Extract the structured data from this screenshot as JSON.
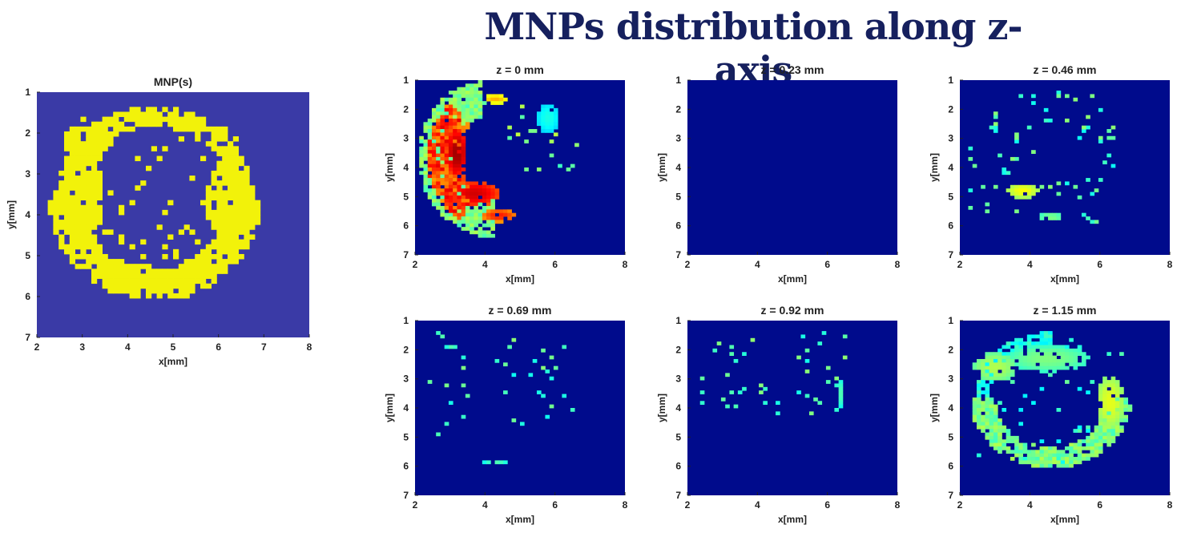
{
  "title": "MNPs distribution along z-axis",
  "colors": {
    "title": "#16205e",
    "background_reference": "#3a3aa6",
    "foreground_reference": "#f2f20a",
    "background_slice": "#000b8c"
  },
  "chart_data": [
    {
      "type": "heatmap",
      "name": "reference",
      "title": "MNP(s)",
      "xlabel": "x[mm]",
      "ylabel": "y[mm]",
      "xlim": [
        2,
        8
      ],
      "ylim": [
        1,
        7
      ],
      "xticks": [
        2,
        3,
        4,
        5,
        6,
        7,
        8
      ],
      "yticks": [
        1,
        2,
        3,
        4,
        5,
        6,
        7
      ],
      "yreversed": true,
      "colormap": "parula-binary",
      "grid": false,
      "cell_size_mm": 0.12,
      "blobs": [
        {
          "type": "arc",
          "cx": 4.6,
          "cy": 3.65,
          "rx": 1.95,
          "ry": 2.05,
          "t0": 180,
          "t1": 360,
          "thick": 0.38,
          "value": 1
        },
        {
          "type": "arc",
          "cx": 4.6,
          "cy": 3.65,
          "rx": 1.95,
          "ry": 2.05,
          "t0": 0,
          "t1": 180,
          "thick": 0.24,
          "value": 1
        },
        {
          "type": "ellipse",
          "cx": 3.0,
          "cy": 3.6,
          "rx": 0.45,
          "ry": 1.3,
          "value": 1
        },
        {
          "type": "ellipse",
          "cx": 6.2,
          "cy": 3.7,
          "rx": 0.45,
          "ry": 1.05,
          "value": 1
        },
        {
          "type": "ellipse",
          "cx": 4.4,
          "cy": 5.6,
          "rx": 0.75,
          "ry": 0.35,
          "value": 1
        },
        {
          "type": "ellipse",
          "cx": 3.1,
          "cy": 2.2,
          "rx": 0.55,
          "ry": 0.4,
          "value": 1
        }
      ],
      "scatter": {
        "count": 70,
        "region": [
          3.0,
          6.5,
          1.6,
          5.6
        ],
        "value": 1
      }
    },
    {
      "type": "heatmap",
      "title": "z = 0 mm",
      "xlabel": "x[mm]",
      "ylabel": "y[mm]",
      "xlim": [
        2,
        8
      ],
      "ylim": [
        1,
        7
      ],
      "xticks": [
        2,
        4,
        6,
        8
      ],
      "yticks": [
        1,
        2,
        3,
        4,
        5,
        6,
        7
      ],
      "yreversed": true,
      "colormap": "jet",
      "grid": false,
      "cell_size_mm": 0.12,
      "blobs": [
        {
          "type": "arc",
          "cx": 4.25,
          "cy": 3.65,
          "rx": 1.65,
          "ry": 2.1,
          "t0": 100,
          "t1": 270,
          "thick": 0.5,
          "value": 0.55
        },
        {
          "type": "arc",
          "cx": 4.25,
          "cy": 3.65,
          "rx": 1.45,
          "ry": 1.9,
          "t0": 130,
          "t1": 240,
          "thick": 0.45,
          "value": 0.9
        },
        {
          "type": "ellipse",
          "cx": 3.7,
          "cy": 4.9,
          "rx": 0.75,
          "ry": 0.45,
          "value": 0.92
        },
        {
          "type": "ellipse",
          "cx": 4.4,
          "cy": 5.65,
          "rx": 0.5,
          "ry": 0.22,
          "value": 0.85
        },
        {
          "type": "ellipse",
          "cx": 4.3,
          "cy": 1.65,
          "rx": 0.35,
          "ry": 0.15,
          "value": 0.7
        },
        {
          "type": "ellipse",
          "cx": 5.8,
          "cy": 2.3,
          "rx": 0.3,
          "ry": 0.5,
          "value": 0.4
        },
        {
          "type": "ellipse",
          "cx": 3.2,
          "cy": 3.5,
          "rx": 0.3,
          "ry": 0.8,
          "value": 0.97
        }
      ],
      "scatter": {
        "count": 20,
        "region": [
          4.5,
          6.8,
          1.8,
          4.2
        ],
        "value": 0.5
      }
    },
    {
      "type": "heatmap",
      "title": "z = 0.23 mm",
      "xlabel": "x[mm]",
      "ylabel": "y[mm]",
      "xlim": [
        2,
        8
      ],
      "ylim": [
        1,
        7
      ],
      "xticks": [
        2,
        4,
        6,
        8
      ],
      "yticks": [
        1,
        2,
        3,
        4,
        5,
        6,
        7
      ],
      "yreversed": true,
      "colormap": "jet",
      "grid": false,
      "cell_size_mm": 0.12,
      "blobs": [],
      "scatter": {
        "count": 0,
        "region": [
          2,
          8,
          1,
          7
        ],
        "value": 0
      }
    },
    {
      "type": "heatmap",
      "title": "z = 0.46 mm",
      "xlabel": "x[mm]",
      "ylabel": "y[mm]",
      "xlim": [
        2,
        8
      ],
      "ylim": [
        1,
        7
      ],
      "xticks": [
        2,
        4,
        6,
        8
      ],
      "yticks": [
        1,
        2,
        3,
        4,
        5,
        6,
        7
      ],
      "yreversed": true,
      "colormap": "jet",
      "grid": false,
      "cell_size_mm": 0.12,
      "blobs": [
        {
          "type": "ellipse",
          "cx": 3.8,
          "cy": 4.8,
          "rx": 0.45,
          "ry": 0.25,
          "value": 0.62
        },
        {
          "type": "ellipse",
          "cx": 4.6,
          "cy": 5.7,
          "rx": 0.35,
          "ry": 0.15,
          "value": 0.5
        }
      ],
      "scatter": {
        "count": 75,
        "region": [
          2.2,
          6.4,
          1.4,
          5.9
        ],
        "value": 0.45
      }
    },
    {
      "type": "heatmap",
      "title": "z = 0.69 mm",
      "xlabel": "x[mm]",
      "ylabel": "y[mm]",
      "xlim": [
        2,
        8
      ],
      "ylim": [
        1,
        7
      ],
      "xticks": [
        2,
        4,
        6,
        8
      ],
      "yticks": [
        1,
        2,
        3,
        4,
        5,
        6,
        7
      ],
      "yreversed": true,
      "colormap": "jet",
      "grid": false,
      "cell_size_mm": 0.12,
      "blobs": [
        {
          "type": "ellipse",
          "cx": 4.3,
          "cy": 5.85,
          "rx": 0.35,
          "ry": 0.1,
          "value": 0.45
        }
      ],
      "scatter": {
        "count": 38,
        "region": [
          2.3,
          6.9,
          1.4,
          5.0
        ],
        "value": 0.45
      }
    },
    {
      "type": "heatmap",
      "title": "z = 0.92 mm",
      "xlabel": "x[mm]",
      "ylabel": "y[mm]",
      "xlim": [
        2,
        8
      ],
      "ylim": [
        1,
        7
      ],
      "xticks": [
        2,
        4,
        6,
        8
      ],
      "yticks": [
        1,
        2,
        3,
        4,
        5,
        6,
        7
      ],
      "yreversed": true,
      "colormap": "jet",
      "grid": false,
      "cell_size_mm": 0.12,
      "blobs": [
        {
          "type": "ellipse",
          "cx": 6.4,
          "cy": 3.5,
          "rx": 0.1,
          "ry": 0.5,
          "value": 0.45
        }
      ],
      "scatter": {
        "count": 45,
        "region": [
          2.2,
          6.6,
          1.4,
          4.2
        ],
        "value": 0.45
      }
    },
    {
      "type": "heatmap",
      "title": "z = 1.15 mm",
      "xlabel": "x[mm]",
      "ylabel": "y[mm]",
      "xlim": [
        2,
        8
      ],
      "ylim": [
        1,
        7
      ],
      "xticks": [
        2,
        4,
        6,
        8
      ],
      "yticks": [
        1,
        2,
        3,
        4,
        5,
        6,
        7
      ],
      "yreversed": true,
      "colormap": "jet",
      "grid": false,
      "cell_size_mm": 0.12,
      "blobs": [
        {
          "type": "arc",
          "cx": 4.6,
          "cy": 3.65,
          "rx": 1.95,
          "ry": 2.05,
          "t0": 180,
          "t1": 360,
          "thick": 0.35,
          "value": 0.55
        },
        {
          "type": "arc",
          "cx": 4.6,
          "cy": 3.65,
          "rx": 1.95,
          "ry": 2.05,
          "t0": 90,
          "t1": 180,
          "thick": 0.2,
          "value": 0.45
        },
        {
          "type": "ellipse",
          "cx": 6.3,
          "cy": 3.8,
          "rx": 0.4,
          "ry": 0.9,
          "value": 0.6
        },
        {
          "type": "ellipse",
          "cx": 4.4,
          "cy": 5.75,
          "rx": 0.65,
          "ry": 0.2,
          "value": 0.45
        },
        {
          "type": "ellipse",
          "cx": 3.0,
          "cy": 2.6,
          "rx": 0.6,
          "ry": 0.5,
          "value": 0.55
        },
        {
          "type": "ellipse",
          "cx": 4.5,
          "cy": 2.3,
          "rx": 1.2,
          "ry": 0.45,
          "value": 0.5
        }
      ],
      "scatter": {
        "count": 45,
        "region": [
          2.4,
          6.6,
          1.6,
          5.6
        ],
        "value": 0.42
      }
    }
  ]
}
